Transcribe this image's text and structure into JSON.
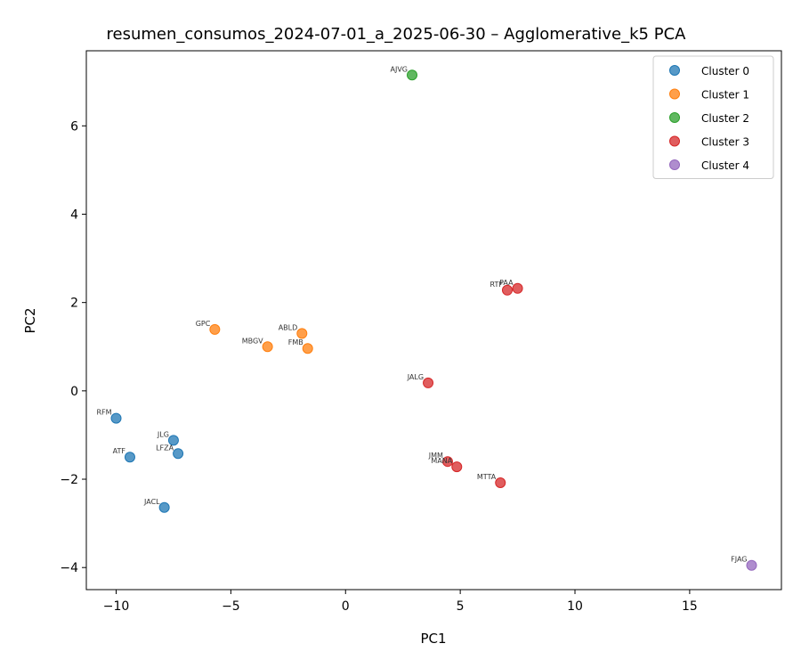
{
  "chart_data": {
    "type": "scatter",
    "title": "resumen_consumos_2024-07-01_a_2025-06-30 – Agglomerative_k5 PCA",
    "xlabel": "PC1",
    "ylabel": "PC2",
    "xlim": [
      -11.3,
      19.0
    ],
    "ylim": [
      -4.5,
      7.7
    ],
    "xticks": [
      -10,
      -5,
      0,
      5,
      10,
      15
    ],
    "yticks": [
      -4,
      -2,
      0,
      2,
      4,
      6
    ],
    "grid": false,
    "legend_position": "top-right",
    "series": [
      {
        "name": "Cluster 0",
        "color": "#1f77b4",
        "points": [
          {
            "label": "RFM",
            "x": -10.0,
            "y": -0.62
          },
          {
            "label": "ATF",
            "x": -9.4,
            "y": -1.5
          },
          {
            "label": "JLG",
            "x": -7.5,
            "y": -1.12
          },
          {
            "label": "LFZA",
            "x": -7.3,
            "y": -1.42
          },
          {
            "label": "JACL",
            "x": -7.9,
            "y": -2.64
          }
        ]
      },
      {
        "name": "Cluster 1",
        "color": "#ff7f0e",
        "points": [
          {
            "label": "GPC",
            "x": -5.7,
            "y": 1.39
          },
          {
            "label": "MBGV",
            "x": -3.4,
            "y": 1.0
          },
          {
            "label": "ABLD",
            "x": -1.9,
            "y": 1.3
          },
          {
            "label": "FMB",
            "x": -1.65,
            "y": 0.96
          }
        ]
      },
      {
        "name": "Cluster 2",
        "color": "#2ca02c",
        "points": [
          {
            "label": "AJVG",
            "x": 2.9,
            "y": 7.15
          }
        ]
      },
      {
        "name": "Cluster 3",
        "color": "#d62728",
        "points": [
          {
            "label": "RTF",
            "x": 7.05,
            "y": 2.28
          },
          {
            "label": "PAA",
            "x": 7.5,
            "y": 2.32
          },
          {
            "label": "JALG",
            "x": 3.6,
            "y": 0.18
          },
          {
            "label": "JMM",
            "x": 4.45,
            "y": -1.6
          },
          {
            "label": "MANA",
            "x": 4.85,
            "y": -1.72
          },
          {
            "label": "MTTA",
            "x": 6.75,
            "y": -2.08
          }
        ]
      },
      {
        "name": "Cluster 4",
        "color": "#9467bd",
        "points": [
          {
            "label": "FJAG",
            "x": 17.7,
            "y": -3.95
          }
        ]
      }
    ]
  }
}
